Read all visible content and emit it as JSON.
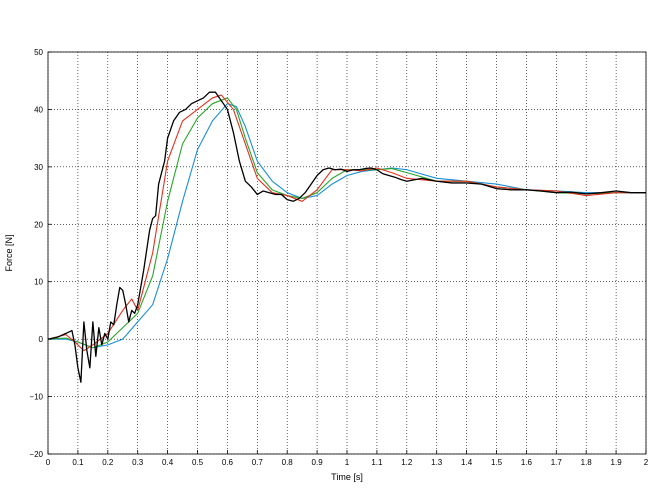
{
  "chart_data": {
    "type": "line",
    "title": "",
    "xlabel": "Time [s]",
    "ylabel": "Force [N]",
    "xlim": [
      0,
      2
    ],
    "ylim": [
      -20,
      50
    ],
    "xticks": [
      0,
      0.1,
      0.2,
      0.3,
      0.4,
      0.5,
      0.6,
      0.7,
      0.8,
      0.9,
      1,
      1.1,
      1.2,
      1.3,
      1.4,
      1.5,
      1.6,
      1.7,
      1.8,
      1.9,
      2
    ],
    "xtick_labels": [
      "0",
      "0.1",
      "0.2",
      "0.3",
      "0.4",
      "0.5",
      "0.6",
      "0.7",
      "0.8",
      "0.9",
      "1",
      "1.1",
      "1.2",
      "1.3",
      "1.4",
      "1.5",
      "1.6",
      "1.7",
      "1.8",
      "1.9",
      "2"
    ],
    "yticks": [
      -20,
      -10,
      0,
      10,
      20,
      30,
      40,
      50
    ],
    "ytick_labels": [
      "−20",
      "−10",
      "0",
      "10",
      "20",
      "30",
      "40",
      "50"
    ],
    "grid": true,
    "legend": "none",
    "series": [
      {
        "color": "#1a8fd6",
        "x": [
          0,
          0.06,
          0.1,
          0.15,
          0.2,
          0.25,
          0.3,
          0.35,
          0.4,
          0.45,
          0.5,
          0.55,
          0.6,
          0.63,
          0.66,
          0.7,
          0.75,
          0.8,
          0.85,
          0.9,
          0.95,
          1.0,
          1.05,
          1.1,
          1.15,
          1.2,
          1.3,
          1.4,
          1.5,
          1.6,
          1.7,
          1.8,
          1.9,
          2.0
        ],
        "y": [
          0,
          0,
          -0.5,
          -1.5,
          -1,
          0,
          3,
          6,
          14,
          24,
          33,
          38,
          41,
          40.5,
          37,
          31,
          27.5,
          25.5,
          24.5,
          25,
          27,
          28.5,
          29.2,
          29.5,
          29.8,
          29.5,
          28,
          27.5,
          27,
          26,
          25.8,
          25.5,
          25.5,
          25.5
        ]
      },
      {
        "color": "#2aa52a",
        "x": [
          0,
          0.06,
          0.1,
          0.15,
          0.2,
          0.25,
          0.3,
          0.35,
          0.4,
          0.45,
          0.5,
          0.55,
          0.6,
          0.63,
          0.66,
          0.7,
          0.75,
          0.8,
          0.85,
          0.9,
          0.95,
          1.0,
          1.05,
          1.1,
          1.15,
          1.2,
          1.3,
          1.4,
          1.5,
          1.6,
          1.7,
          1.8,
          1.9,
          2.0
        ],
        "y": [
          0,
          0.2,
          -0.5,
          -1.5,
          -0.5,
          2,
          4.5,
          11,
          24,
          34,
          38.5,
          41,
          42,
          40,
          35,
          29,
          26,
          25,
          24.5,
          25.5,
          28,
          29.5,
          29.5,
          29.5,
          29.7,
          29,
          27.5,
          27.5,
          26.5,
          26,
          25.5,
          25.3,
          25.5,
          25.5
        ]
      },
      {
        "color": "#e0321e",
        "x": [
          0,
          0.06,
          0.09,
          0.12,
          0.15,
          0.2,
          0.25,
          0.28,
          0.3,
          0.35,
          0.4,
          0.45,
          0.5,
          0.55,
          0.58,
          0.62,
          0.66,
          0.7,
          0.75,
          0.8,
          0.85,
          0.9,
          0.95,
          1.0,
          1.05,
          1.1,
          1.15,
          1.2,
          1.3,
          1.4,
          1.5,
          1.6,
          1.7,
          1.8,
          1.9,
          2.0
        ],
        "y": [
          0,
          0.8,
          -0.5,
          -2,
          -1,
          1,
          5,
          7,
          5,
          15,
          31,
          38,
          40,
          42,
          42.5,
          40,
          34,
          28,
          25.5,
          25,
          24,
          26,
          29.5,
          29.5,
          29.3,
          29.8,
          29,
          28,
          27.5,
          27.5,
          26.5,
          26,
          25.8,
          25,
          25.5,
          25.5
        ]
      },
      {
        "color": "#000000",
        "x": [
          0,
          0.03,
          0.06,
          0.08,
          0.09,
          0.1,
          0.11,
          0.12,
          0.13,
          0.14,
          0.15,
          0.16,
          0.17,
          0.18,
          0.19,
          0.2,
          0.21,
          0.22,
          0.23,
          0.24,
          0.25,
          0.26,
          0.27,
          0.28,
          0.29,
          0.3,
          0.32,
          0.34,
          0.35,
          0.36,
          0.37,
          0.38,
          0.39,
          0.4,
          0.42,
          0.44,
          0.46,
          0.48,
          0.5,
          0.52,
          0.54,
          0.56,
          0.58,
          0.6,
          0.62,
          0.64,
          0.66,
          0.68,
          0.7,
          0.72,
          0.74,
          0.76,
          0.78,
          0.8,
          0.82,
          0.84,
          0.86,
          0.88,
          0.9,
          0.92,
          0.94,
          0.96,
          0.98,
          1.0,
          1.02,
          1.04,
          1.06,
          1.08,
          1.1,
          1.12,
          1.14,
          1.16,
          1.18,
          1.2,
          1.25,
          1.3,
          1.35,
          1.4,
          1.45,
          1.5,
          1.55,
          1.6,
          1.65,
          1.7,
          1.75,
          1.8,
          1.85,
          1.9,
          1.95,
          2.0
        ],
        "y": [
          0,
          0.3,
          1,
          1.5,
          -1,
          -5,
          -7.5,
          3,
          -2,
          -5,
          3,
          -3,
          2,
          -1,
          1,
          0,
          3,
          2.5,
          6,
          9,
          8.5,
          6,
          3,
          5,
          4.5,
          6,
          12,
          19,
          21,
          21.5,
          27,
          29,
          31,
          35,
          38,
          39.5,
          40,
          41,
          41.5,
          42,
          43,
          43,
          41.5,
          40,
          36,
          31,
          27.5,
          26.5,
          25.2,
          25.8,
          25.5,
          25.2,
          25.2,
          24.3,
          24,
          24.5,
          25.5,
          27,
          28.5,
          29.5,
          29.8,
          29.5,
          29.6,
          29.2,
          29.5,
          29.5,
          29.7,
          29.8,
          29.5,
          28.8,
          28.5,
          28.2,
          27.8,
          27.5,
          28,
          27.5,
          27.2,
          27.2,
          27,
          26.2,
          26,
          26,
          25.8,
          25.5,
          25.6,
          25.3,
          25.5,
          25.8,
          25.5,
          25.5
        ]
      }
    ]
  }
}
